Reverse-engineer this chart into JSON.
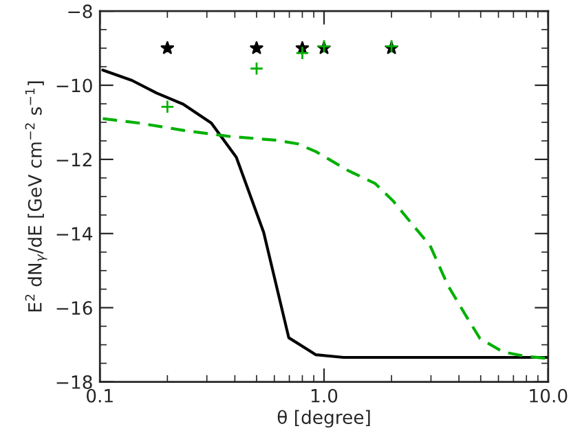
{
  "chart_data": {
    "type": "line",
    "xlabel": "θ [degree]",
    "ylabel": "E$^{2}$ dN$_{γ}$/dE [GeV cm$^{−2}$ s$^{−1}$]",
    "log": "x",
    "xlim": [
      0.1,
      10
    ],
    "xticks": [
      {
        "value": 0.1,
        "label": "0.1"
      },
      {
        "value": 1,
        "label": "1.0"
      },
      {
        "value": 10,
        "label": "10.0"
      }
    ],
    "ylim": [
      -18,
      -8
    ],
    "yticks": [
      {
        "value": -18,
        "label": "−18"
      },
      {
        "value": -16,
        "label": "−16"
      },
      {
        "value": -14,
        "label": "−14"
      },
      {
        "value": -12,
        "label": "−12"
      },
      {
        "value": -10,
        "label": "−10"
      },
      {
        "value": -8,
        "label": "−8"
      }
    ],
    "series": [
      {
        "color": "#000000",
        "line_style": "solid",
        "x": [
          0.103,
          0.139,
          0.179,
          0.235,
          0.314,
          0.406,
          0.538,
          0.696,
          0.92,
          1.22,
          10
        ],
        "values": [
          -9.59,
          -9.87,
          -10.21,
          -10.51,
          -11.02,
          -11.94,
          -13.97,
          -16.81,
          -17.27,
          -17.34,
          -17.34
        ]
      },
      {
        "color": "#00b000",
        "line_style": "dashed",
        "x": [
          0.103,
          0.149,
          0.238,
          0.379,
          0.605,
          0.763,
          0.92,
          1.28,
          1.69,
          2.04,
          2.46,
          2.97,
          3.57,
          4.31,
          4.96,
          6.27,
          7.91,
          10
        ],
        "values": [
          -10.9,
          -11.02,
          -11.22,
          -11.38,
          -11.48,
          -11.58,
          -11.79,
          -12.3,
          -12.65,
          -13.13,
          -13.73,
          -14.32,
          -15.4,
          -16.23,
          -16.83,
          -17.19,
          -17.31,
          -17.37
        ]
      },
      {
        "type": "scatter",
        "color": "#000000",
        "marker": "star",
        "x": [
          0.2,
          0.5,
          0.8,
          1.0,
          2.0
        ],
        "values": [
          -9.0,
          -9.0,
          -9.0,
          -9.0,
          -9.0
        ]
      },
      {
        "type": "scatter",
        "color": "#00b000",
        "marker": "cross",
        "x": [
          0.2,
          0.5,
          0.8,
          1.0,
          2.0
        ],
        "values": [
          -10.58,
          -9.55,
          -9.13,
          -8.95,
          -8.95
        ]
      }
    ]
  }
}
